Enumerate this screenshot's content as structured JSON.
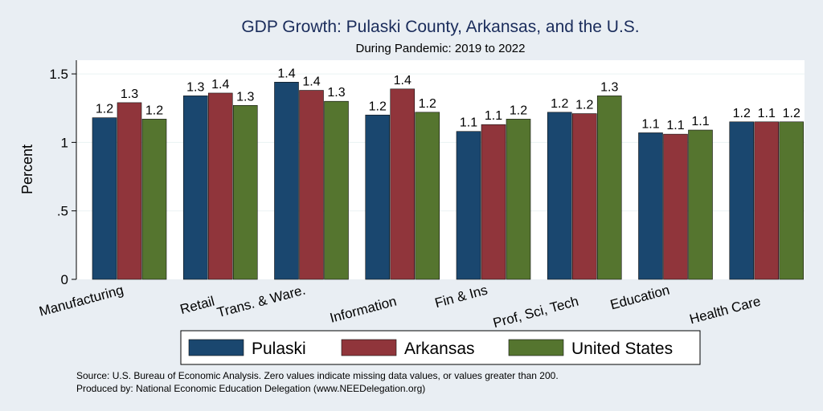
{
  "chart_data": {
    "type": "bar",
    "title": "GDP Growth: Pulaski County, Arkansas, and the U.S.",
    "subtitle": "During Pandemic: 2019 to 2022",
    "xlabel": "",
    "ylabel": "Percent",
    "ylim": [
      0,
      1.6
    ],
    "yticks": [
      0,
      0.5,
      1,
      1.5
    ],
    "ytick_labels": [
      "0",
      ".5",
      "1",
      "1.5"
    ],
    "grid": true,
    "legend_position": "bottom",
    "categories": [
      "Manufacturing",
      "Retail",
      "Trans. & Ware.",
      "Information",
      "Fin & Ins",
      "Prof, Sci, Tech",
      "Education",
      "Health Care"
    ],
    "series": [
      {
        "name": "Pulaski",
        "color": "#1a476f",
        "values": [
          1.18,
          1.34,
          1.44,
          1.2,
          1.08,
          1.22,
          1.07,
          1.15
        ],
        "labels": [
          "1.2",
          "1.3",
          "1.4",
          "1.2",
          "1.1",
          "1.2",
          "1.1",
          "1.2"
        ]
      },
      {
        "name": "Arkansas",
        "color": "#90353b",
        "values": [
          1.29,
          1.36,
          1.38,
          1.39,
          1.13,
          1.21,
          1.06,
          1.15
        ],
        "labels": [
          "1.3",
          "1.4",
          "1.4",
          "1.4",
          "1.1",
          "1.2",
          "1.1",
          "1.1"
        ]
      },
      {
        "name": "United States",
        "color": "#55752f",
        "values": [
          1.17,
          1.27,
          1.3,
          1.22,
          1.17,
          1.34,
          1.09,
          1.15
        ],
        "labels": [
          "1.2",
          "1.3",
          "1.3",
          "1.2",
          "1.2",
          "1.3",
          "1.1",
          "1.2"
        ]
      }
    ]
  },
  "footnotes": {
    "source": "Source: U.S. Bureau of Economic Analysis. Zero values indicate missing data values, or values greater than 200.",
    "produced_by": "Produced by: National Economic Education Delegation (www.NEEDelegation.org)"
  },
  "colors": {
    "background": "#e9eef3",
    "plot_background": "#ffffff",
    "grid": "#eaf2f3",
    "title": "#1a2c5b"
  }
}
